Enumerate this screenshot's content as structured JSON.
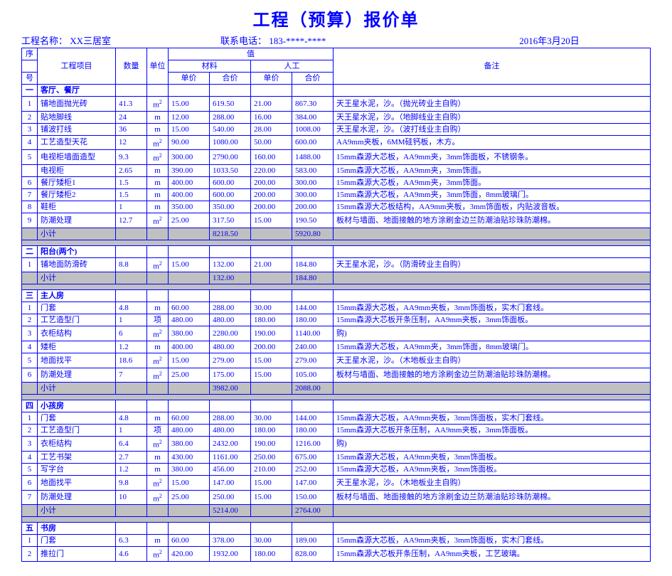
{
  "title": "工程（预算）报价单",
  "meta": {
    "project_label": "工程名称：",
    "project_name": "XX三居室",
    "phone_label": "联系电话：",
    "phone": "183-****-****",
    "date": "2016年3月20日"
  },
  "headers": {
    "seq_top": "序",
    "seq_bot": "号",
    "item": "工程项目",
    "qty": "数量",
    "unit": "单位",
    "value_group": "值",
    "material": "材料",
    "labor": "人工",
    "unit_price": "单价",
    "total_price": "合价",
    "note": "备注"
  },
  "cn_nums": [
    "一",
    "二",
    "三",
    "四",
    "五"
  ],
  "sections": [
    {
      "seq": "一",
      "name": "客厅、餐厅",
      "rows": [
        {
          "idx": "1",
          "name": "铺地面抛光砖",
          "qty": "41.3",
          "unit": "m²",
          "mp": "15.00",
          "mt": "619.50",
          "lp": "21.00",
          "lt": "867.30",
          "note": "天王星水泥，沙。（抛光砖业主自购）"
        },
        {
          "idx": "2",
          "name": "贴地脚线",
          "qty": "24",
          "unit": "m",
          "mp": "12.00",
          "mt": "288.00",
          "lp": "16.00",
          "lt": "384.00",
          "note": "天王星水泥，沙。（地脚线业主自购）"
        },
        {
          "idx": "3",
          "name": "铺波打线",
          "qty": "36",
          "unit": "m",
          "mp": "15.00",
          "mt": "540.00",
          "lp": "28.00",
          "lt": "1008.00",
          "note": "天王星水泥，沙。（波打线业主自购）"
        },
        {
          "idx": "4",
          "name": "工艺造型天花",
          "qty": "12",
          "unit": "m²",
          "mp": "90.00",
          "mt": "1080.00",
          "lp": "50.00",
          "lt": "600.00",
          "note": "AA9mm夹板，6MM硅钙板，木方。"
        },
        {
          "idx": "5",
          "name": "电视柜墙面造型",
          "qty": "9.3",
          "unit": "m²",
          "mp": "300.00",
          "mt": "2790.00",
          "lp": "160.00",
          "lt": "1488.00",
          "note": "15mm森源大芯板，AA9mm夹，3mm饰面板，不锈钢条。"
        },
        {
          "idx": "",
          "name": "电视柜",
          "qty": "2.65",
          "unit": "m",
          "mp": "390.00",
          "mt": "1033.50",
          "lp": "220.00",
          "lt": "583.00",
          "note": "15mm森源大芯板，AA9mm夹，3mm饰面。"
        },
        {
          "idx": "6",
          "name": "餐厅矮柜1",
          "qty": "1.5",
          "unit": "m",
          "mp": "400.00",
          "mt": "600.00",
          "lp": "200.00",
          "lt": "300.00",
          "note": "15mm森源大芯板，AA9mm夹，3mm饰面。"
        },
        {
          "idx": "7",
          "name": "餐厅矮柜2",
          "qty": "1.5",
          "unit": "m",
          "mp": "400.00",
          "mt": "600.00",
          "lp": "200.00",
          "lt": "300.00",
          "note": "15mm森源大芯板，AA9mm夹，3mm饰面，8mm玻璃门。"
        },
        {
          "idx": "8",
          "name": "鞋柜",
          "qty": "1",
          "unit": "m",
          "mp": "350.00",
          "mt": "350.00",
          "lp": "200.00",
          "lt": "200.00",
          "note": "15mm森源大芯板结构，AA9mm夹板，3mm饰面板，内贴波音板。"
        },
        {
          "idx": "9",
          "name": "防潮处理",
          "qty": "12.7",
          "unit": "m²",
          "mp": "25.00",
          "mt": "317.50",
          "lp": "15.00",
          "lt": "190.50",
          "note": "板材与墙面、地面接触的地方涂刷金边兰防潮油贴珍珠防潮棉。"
        }
      ],
      "subtotal": {
        "name": "小计",
        "mt": "8218.50",
        "lt": "5920.80"
      }
    },
    {
      "seq": "二",
      "name": "阳台(两个)",
      "rows": [
        {
          "idx": "1",
          "name": "铺地面防滑砖",
          "qty": "8.8",
          "unit": "m²",
          "mp": "15.00",
          "mt": "132.00",
          "lp": "21.00",
          "lt": "184.80",
          "note": "天王星水泥，沙。（防滑砖业主自购）"
        }
      ],
      "subtotal": {
        "name": "小计",
        "mt": "132.00",
        "lt": "184.80"
      }
    },
    {
      "seq": "三",
      "name": "主人房",
      "rows": [
        {
          "idx": "1",
          "name": "门套",
          "qty": "4.8",
          "unit": "m",
          "mp": "60.00",
          "mt": "288.00",
          "lp": "30.00",
          "lt": "144.00",
          "note": "15mm森源大芯板，AA9mm夹板，3mm饰面板，实木门套线。"
        },
        {
          "idx": "2",
          "name": "工艺造型门",
          "qty": "1",
          "unit": "项",
          "mp": "480.00",
          "mt": "480.00",
          "lp": "180.00",
          "lt": "180.00",
          "note": "15mm森源大芯板开条压制，AA9mm夹板，3mm饰面板。"
        },
        {
          "idx": "3",
          "name": "衣柜结构",
          "qty": "6",
          "unit": "m²",
          "mp": "380.00",
          "mt": "2280.00",
          "lp": "190.00",
          "lt": "1140.00",
          "note": "购)"
        },
        {
          "idx": "4",
          "name": "矮柜",
          "qty": "1.2",
          "unit": "m",
          "mp": "400.00",
          "mt": "480.00",
          "lp": "200.00",
          "lt": "240.00",
          "note": "15mm森源大芯板，AA9mm夹，3mm饰面，8mm玻璃门。"
        },
        {
          "idx": "5",
          "name": "地面找平",
          "qty": "18.6",
          "unit": "m²",
          "mp": "15.00",
          "mt": "279.00",
          "lp": "15.00",
          "lt": "279.00",
          "note": "天王星水泥，沙。（木地板业主自购）"
        },
        {
          "idx": "6",
          "name": "防潮处理",
          "qty": "7",
          "unit": "m²",
          "mp": "25.00",
          "mt": "175.00",
          "lp": "15.00",
          "lt": "105.00",
          "note": "板材与墙面、地面接触的地方涂刷金边兰防潮油贴珍珠防潮棉。"
        }
      ],
      "subtotal": {
        "name": "小计",
        "mt": "3982.00",
        "lt": "2088.00"
      }
    },
    {
      "seq": "四",
      "name": "小孩房",
      "rows": [
        {
          "idx": "1",
          "name": "门套",
          "qty": "4.8",
          "unit": "m",
          "mp": "60.00",
          "mt": "288.00",
          "lp": "30.00",
          "lt": "144.00",
          "note": "15mm森源大芯板，AA9mm夹板，3mm饰面板，实木门套线。"
        },
        {
          "idx": "2",
          "name": "工艺造型门",
          "qty": "1",
          "unit": "项",
          "mp": "480.00",
          "mt": "480.00",
          "lp": "180.00",
          "lt": "180.00",
          "note": "15mm森源大芯板开条压制，AA9mm夹板，3mm饰面板。"
        },
        {
          "idx": "3",
          "name": "衣柜结构",
          "qty": "6.4",
          "unit": "m²",
          "mp": "380.00",
          "mt": "2432.00",
          "lp": "190.00",
          "lt": "1216.00",
          "note": "购)"
        },
        {
          "idx": "4",
          "name": "工艺书架",
          "qty": "2.7",
          "unit": "m",
          "mp": "430.00",
          "mt": "1161.00",
          "lp": "250.00",
          "lt": "675.00",
          "note": "15mm森源大芯板，AA9mm夹板，3mm饰面板。"
        },
        {
          "idx": "5",
          "name": "写字台",
          "qty": "1.2",
          "unit": "m",
          "mp": "380.00",
          "mt": "456.00",
          "lp": "210.00",
          "lt": "252.00",
          "note": "15mm森源大芯板，AA9mm夹板，3mm饰面板。"
        },
        {
          "idx": "6",
          "name": "地面找平",
          "qty": "9.8",
          "unit": "m²",
          "mp": "15.00",
          "mt": "147.00",
          "lp": "15.00",
          "lt": "147.00",
          "note": "天王星水泥，沙。（木地板业主自购）"
        },
        {
          "idx": "7",
          "name": "防潮处理",
          "qty": "10",
          "unit": "m²",
          "mp": "25.00",
          "mt": "250.00",
          "lp": "15.00",
          "lt": "150.00",
          "note": "板材与墙面、地面接触的地方涂刷金边兰防潮油贴珍珠防潮棉。"
        }
      ],
      "subtotal": {
        "name": "小计",
        "mt": "5214.00",
        "lt": "2764.00"
      }
    },
    {
      "seq": "五",
      "name": "书房",
      "rows": [
        {
          "idx": "1",
          "name": "门套",
          "qty": "6.3",
          "unit": "m",
          "mp": "60.00",
          "mt": "378.00",
          "lp": "30.00",
          "lt": "189.00",
          "note": "15mm森源大芯板，AA9mm夹板，3mm饰面板，实木门套线。"
        },
        {
          "idx": "2",
          "name": "推拉门",
          "qty": "4.6",
          "unit": "m²",
          "mp": "420.00",
          "mt": "1932.00",
          "lp": "180.00",
          "lt": "828.00",
          "note": "15mm森源大芯板开条压制，AA9mm夹板，工艺玻璃。"
        }
      ]
    }
  ]
}
